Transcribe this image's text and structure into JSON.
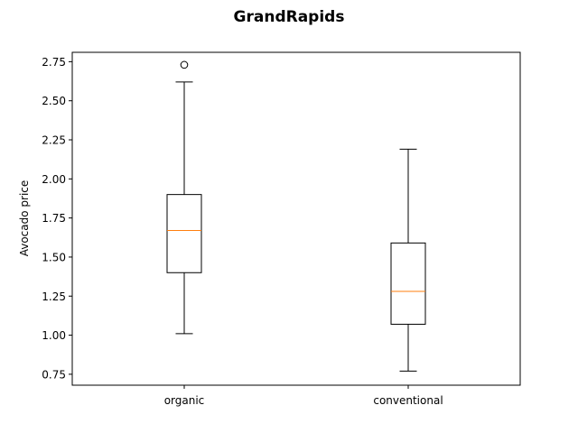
{
  "chart_data": {
    "type": "box",
    "title": "GrandRapids",
    "xlabel": "",
    "ylabel": "Avocado price",
    "ylim": [
      0.68,
      2.81
    ],
    "yticks": [
      "0.75",
      "1.00",
      "1.25",
      "1.50",
      "1.75",
      "2.00",
      "2.25",
      "2.50",
      "2.75"
    ],
    "categories": [
      "organic",
      "conventional"
    ],
    "boxes": [
      {
        "name": "organic",
        "whisker_low": 1.01,
        "q1": 1.4,
        "median": 1.67,
        "q3": 1.9,
        "whisker_high": 2.62,
        "outliers": [
          2.73
        ]
      },
      {
        "name": "conventional",
        "whisker_low": 0.77,
        "q1": 1.07,
        "median": 1.28,
        "q3": 1.59,
        "whisker_high": 2.19,
        "outliers": []
      }
    ],
    "grid": false,
    "colors": {
      "box": "#000000",
      "median": "#ff7f0e"
    }
  }
}
